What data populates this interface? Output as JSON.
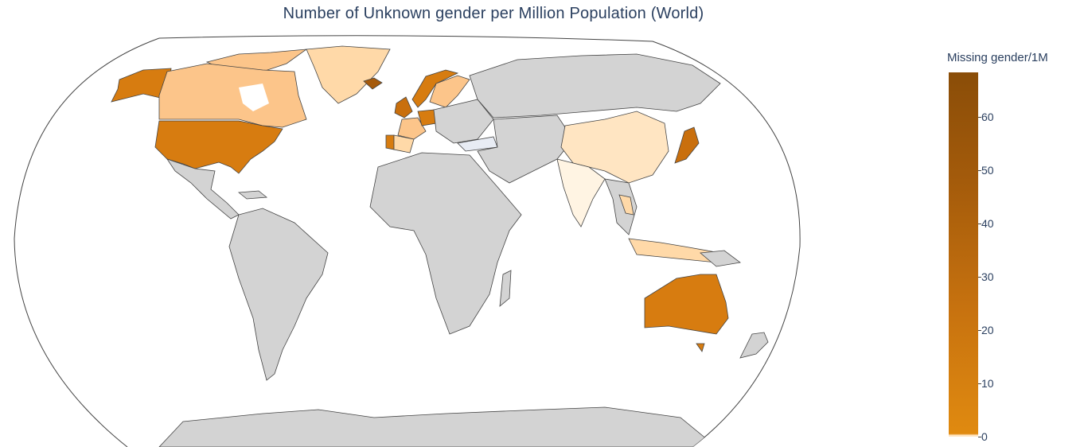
{
  "title": "Number of Unknown gender per Million Population (World)",
  "colorbar": {
    "title": "Missing gender/1M",
    "ticks": [
      "0",
      "10",
      "20",
      "30",
      "40",
      "50",
      "60"
    ],
    "range": [
      0,
      68
    ],
    "colors": {
      "low": "#ffe5c2",
      "mid": "#e08a10",
      "high": "#8a4d08",
      "no_data": "#d3d3d3",
      "ocean_border": "#444444"
    }
  },
  "map": {
    "projection": "natural-earth",
    "regions": [
      {
        "name": "United States",
        "value": 18
      },
      {
        "name": "Canada",
        "value": 3
      },
      {
        "name": "Alaska",
        "value": 18
      },
      {
        "name": "Australia",
        "value": 20
      },
      {
        "name": "Japan",
        "value": 22
      },
      {
        "name": "China",
        "value": 1
      },
      {
        "name": "India",
        "value": 0
      },
      {
        "name": "United Kingdom",
        "value": 25
      },
      {
        "name": "Germany",
        "value": 22
      },
      {
        "name": "Norway",
        "value": 20
      },
      {
        "name": "Sweden",
        "value": 4
      },
      {
        "name": "Portugal",
        "value": 18
      },
      {
        "name": "Spain",
        "value": 2
      },
      {
        "name": "France",
        "value": 3
      },
      {
        "name": "Iceland",
        "value": 28
      },
      {
        "name": "Greenland",
        "value": 2
      },
      {
        "name": "Turkey",
        "value": 1
      },
      {
        "name": "Thailand",
        "value": 2
      },
      {
        "name": "Vietnam",
        "value": 2
      },
      {
        "name": "Indonesia",
        "value": 2
      }
    ]
  }
}
